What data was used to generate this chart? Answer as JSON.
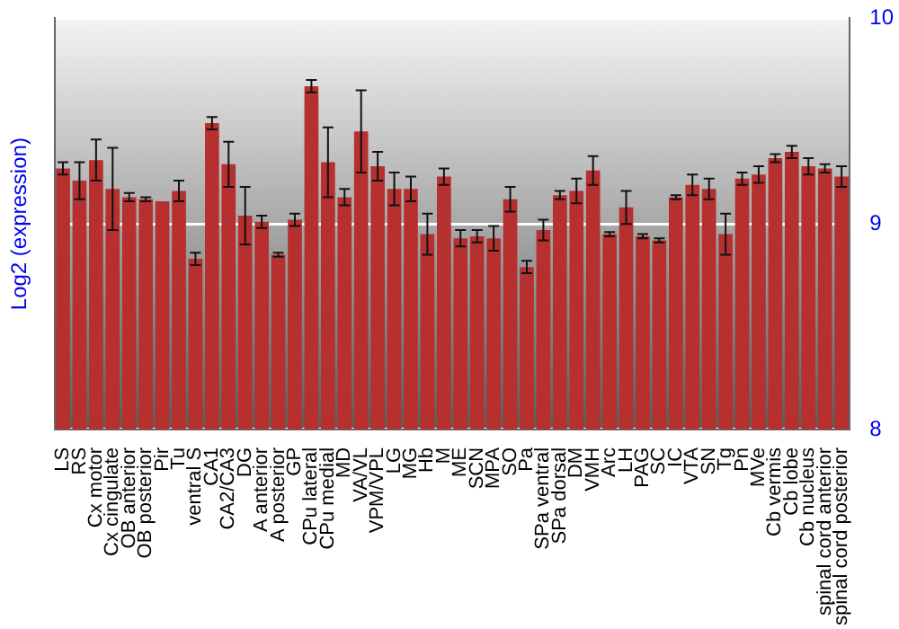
{
  "chart_data": {
    "type": "bar",
    "ylabel": "Log2 (expression)",
    "categories": [
      "LS",
      "RS",
      "Cx motor",
      "Cx cingulate",
      "OB anterior",
      "OB posterior",
      "Pir",
      "Tu",
      "ventral S",
      "CA1",
      "CA2/CA3",
      "DG",
      "A anterior",
      "A posterior",
      "GP",
      "CPu lateral",
      "CPu medial",
      "MD",
      "VA/VL",
      "VPM/VPL",
      "LG",
      "MG",
      "Hb",
      "M",
      "ME",
      "SCN",
      "MPA",
      "SO",
      "Pa",
      "SPa ventral",
      "SPa dorsal",
      "DM",
      "VMH",
      "Arc",
      "LH",
      "PAG",
      "SC",
      "IC",
      "VTA",
      "SN",
      "Tg",
      "Pn",
      "MVe",
      "Cb vermis",
      "Cb lobe",
      "Cb nucleus",
      "spinal cord anterior",
      "spinal cord posterior"
    ],
    "values": [
      9.27,
      9.21,
      9.31,
      9.17,
      9.13,
      9.12,
      9.11,
      9.16,
      8.83,
      9.49,
      9.29,
      9.04,
      9.01,
      8.85,
      9.02,
      9.67,
      9.3,
      9.13,
      9.45,
      9.28,
      9.17,
      9.17,
      8.95,
      9.23,
      8.93,
      8.94,
      8.93,
      9.12,
      8.79,
      8.97,
      9.14,
      9.16,
      9.26,
      8.95,
      9.08,
      8.94,
      8.92,
      9.13,
      9.19,
      9.17,
      8.95,
      9.22,
      9.24,
      9.32,
      9.35,
      9.28,
      9.27,
      9.23
    ],
    "errors": [
      0.03,
      0.09,
      0.1,
      0.2,
      0.02,
      0.01,
      null,
      0.05,
      0.03,
      0.03,
      0.11,
      0.14,
      0.03,
      0.01,
      0.03,
      0.03,
      0.17,
      0.04,
      0.2,
      0.07,
      0.08,
      0.06,
      0.1,
      0.04,
      0.04,
      0.03,
      0.06,
      0.06,
      0.03,
      0.05,
      0.02,
      0.06,
      0.07,
      0.01,
      0.08,
      0.01,
      0.01,
      0.01,
      0.05,
      0.05,
      0.1,
      0.03,
      0.04,
      0.02,
      0.03,
      0.04,
      0.02,
      0.05
    ],
    "color": "#b5302e",
    "ylim": [
      8,
      10
    ],
    "yticks": [
      8,
      9,
      10
    ],
    "grid": "y",
    "legend": false
  }
}
